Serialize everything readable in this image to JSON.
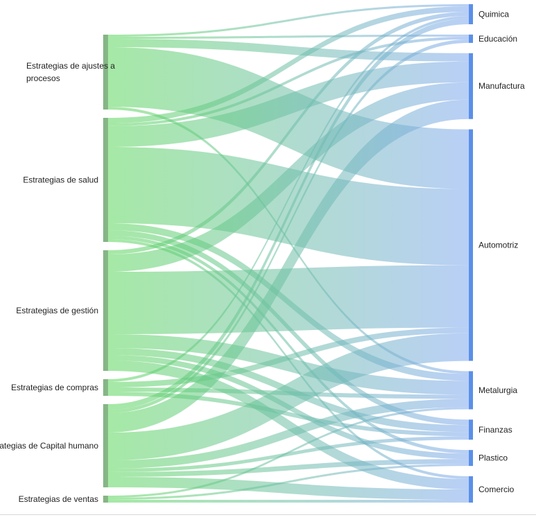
{
  "chart_data": {
    "type": "sankey",
    "colors": {
      "source_node": "#86b586",
      "target_node": "#5b8fe8",
      "link_start": "#5cd65c",
      "link_end": "#7fa8ee"
    },
    "sources": [
      {
        "id": "ajustes",
        "label_lines": [
          "Estrategias de ajustes a",
          "procesos"
        ]
      },
      {
        "id": "salud",
        "label_lines": [
          "Estrategias de salud"
        ]
      },
      {
        "id": "gestion",
        "label_lines": [
          "Estrategias de gestión"
        ]
      },
      {
        "id": "compras",
        "label_lines": [
          "Estrategias de compras"
        ]
      },
      {
        "id": "capital",
        "label_lines": [
          "Estrategias de Capital humano"
        ]
      },
      {
        "id": "ventas",
        "label_lines": [
          "Estrategias de ventas"
        ]
      }
    ],
    "targets": [
      {
        "id": "quimica",
        "label": "Quimica"
      },
      {
        "id": "educacion",
        "label": "Educación"
      },
      {
        "id": "manufactura",
        "label": "Manufactura"
      },
      {
        "id": "automotriz",
        "label": "Automotriz"
      },
      {
        "id": "metalurgia",
        "label": "Metalurgia"
      },
      {
        "id": "finanzas",
        "label": "Finanzas"
      },
      {
        "id": "plastico",
        "label": "Plastico"
      },
      {
        "id": "comercio",
        "label": "Comercio"
      }
    ],
    "links": [
      {
        "source": "ajustes",
        "target": "quimica",
        "value": 3
      },
      {
        "source": "ajustes",
        "target": "educacion",
        "value": 3
      },
      {
        "source": "ajustes",
        "target": "manufactura",
        "value": 12
      },
      {
        "source": "ajustes",
        "target": "automotriz",
        "value": 86
      },
      {
        "source": "ajustes",
        "target": "metalurgia",
        "value": 4
      },
      {
        "source": "salud",
        "target": "quimica",
        "value": 8
      },
      {
        "source": "salud",
        "target": "educacion",
        "value": 4
      },
      {
        "source": "salud",
        "target": "manufactura",
        "value": 30
      },
      {
        "source": "salud",
        "target": "automotriz",
        "value": 110
      },
      {
        "source": "salud",
        "target": "metalurgia",
        "value": 10
      },
      {
        "source": "salud",
        "target": "finanzas",
        "value": 8
      },
      {
        "source": "salud",
        "target": "plastico",
        "value": 5
      },
      {
        "source": "salud",
        "target": "comercio",
        "value": 4
      },
      {
        "source": "gestion",
        "target": "quimica",
        "value": 6
      },
      {
        "source": "gestion",
        "target": "manufactura",
        "value": 25
      },
      {
        "source": "gestion",
        "target": "automotriz",
        "value": 90
      },
      {
        "source": "gestion",
        "target": "metalurgia",
        "value": 20
      },
      {
        "source": "gestion",
        "target": "finanzas",
        "value": 10
      },
      {
        "source": "gestion",
        "target": "plastico",
        "value": 8
      },
      {
        "source": "gestion",
        "target": "comercio",
        "value": 15
      },
      {
        "source": "compras",
        "target": "quimica",
        "value": 4
      },
      {
        "source": "compras",
        "target": "automotriz",
        "value": 8
      },
      {
        "source": "compras",
        "target": "metalurgia",
        "value": 6
      },
      {
        "source": "compras",
        "target": "finanzas",
        "value": 6
      },
      {
        "source": "capital",
        "target": "quimica",
        "value": 8
      },
      {
        "source": "capital",
        "target": "educacion",
        "value": 5
      },
      {
        "source": "capital",
        "target": "manufactura",
        "value": 28
      },
      {
        "source": "capital",
        "target": "automotriz",
        "value": 40
      },
      {
        "source": "capital",
        "target": "metalurgia",
        "value": 12
      },
      {
        "source": "capital",
        "target": "finanzas",
        "value": 5
      },
      {
        "source": "capital",
        "target": "plastico",
        "value": 7
      },
      {
        "source": "capital",
        "target": "comercio",
        "value": 15
      },
      {
        "source": "ventas",
        "target": "metalurgia",
        "value": 3
      },
      {
        "source": "ventas",
        "target": "plastico",
        "value": 3
      },
      {
        "source": "ventas",
        "target": "comercio",
        "value": 4
      }
    ]
  }
}
